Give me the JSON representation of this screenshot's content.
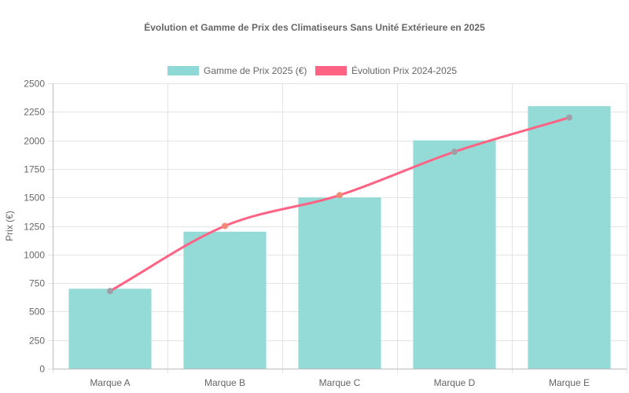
{
  "chart_data": {
    "type": "bar",
    "title": "Évolution et Gamme de Prix des Climatiseurs Sans Unité Extérieure en 2025",
    "ylabel": "Prix (€)",
    "xlabel": "",
    "categories": [
      "Marque A",
      "Marque B",
      "Marque C",
      "Marque D",
      "Marque E"
    ],
    "ylim": [
      0,
      2500
    ],
    "yticks": [
      0,
      250,
      500,
      750,
      1000,
      1250,
      1500,
      1750,
      2000,
      2250,
      2500
    ],
    "grid": true,
    "legend_position": "top",
    "series": [
      {
        "name": "Gamme de Prix 2025 (€)",
        "type": "bar",
        "values": [
          700,
          1200,
          1500,
          2000,
          2300
        ],
        "color": "#8ed8d5"
      },
      {
        "name": "Évolution Prix 2024-2025",
        "type": "line",
        "values": [
          680,
          1250,
          1520,
          1900,
          2200
        ],
        "color": "#ff6384",
        "point_colors": [
          "#a09ea6",
          "#f28b76",
          "#f28b76",
          "#a09ea6",
          "#a09ea6"
        ]
      }
    ]
  }
}
